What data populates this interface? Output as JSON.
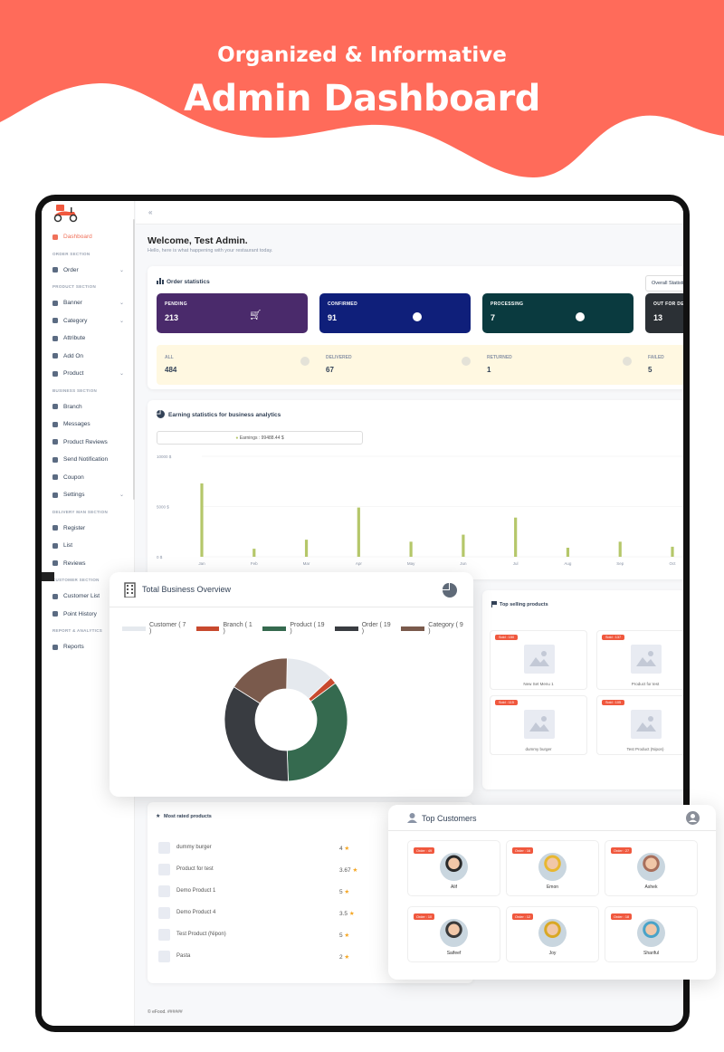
{
  "hero": {
    "subtitle": "Organized & Informative",
    "title": "Admin Dashboard",
    "color": "#ff6b5a"
  },
  "sidebar": {
    "items": [
      {
        "type": "item",
        "label": "Dashboard",
        "icon": "home-icon",
        "active": true
      },
      {
        "type": "head",
        "label": "ORDER SECTION"
      },
      {
        "type": "item",
        "label": "Order",
        "icon": "cart-icon",
        "chevron": true
      },
      {
        "type": "head",
        "label": "PRODUCT SECTION"
      },
      {
        "type": "item",
        "label": "Banner",
        "icon": "image-icon",
        "chevron": true
      },
      {
        "type": "item",
        "label": "Category",
        "icon": "category-icon",
        "chevron": true
      },
      {
        "type": "item",
        "label": "Attribute",
        "icon": "attribute-icon"
      },
      {
        "type": "item",
        "label": "Add On",
        "icon": "plus-circle-icon"
      },
      {
        "type": "item",
        "label": "Product",
        "icon": "heart-icon",
        "chevron": true
      },
      {
        "type": "head",
        "label": "BUSINESS SECTION"
      },
      {
        "type": "item",
        "label": "Branch",
        "icon": "store-icon"
      },
      {
        "type": "item",
        "label": "Messages",
        "icon": "message-icon"
      },
      {
        "type": "item",
        "label": "Product Reviews",
        "icon": "star-icon"
      },
      {
        "type": "item",
        "label": "Send Notification",
        "icon": "bell-icon"
      },
      {
        "type": "item",
        "label": "Coupon",
        "icon": "coupon-icon"
      },
      {
        "type": "item",
        "label": "Settings",
        "icon": "gear-icon",
        "chevron": true
      },
      {
        "type": "head",
        "label": "DELIVERY MAN SECTION"
      },
      {
        "type": "item",
        "label": "Register",
        "icon": "user-plus-icon"
      },
      {
        "type": "item",
        "label": "List",
        "icon": "filter-icon"
      },
      {
        "type": "item",
        "label": "Reviews",
        "icon": "star-outline-icon"
      },
      {
        "type": "head",
        "label": "CUSTOMER SECTION"
      },
      {
        "type": "item",
        "label": "Customer List",
        "icon": "pin-icon"
      },
      {
        "type": "item",
        "label": "Point History",
        "icon": "history-icon"
      },
      {
        "type": "head",
        "label": "REPORT & ANALYTICS"
      },
      {
        "type": "item",
        "label": "Reports",
        "icon": "report-icon"
      }
    ]
  },
  "topbar": {
    "collapse_icon": "collapse-icon"
  },
  "welcome": {
    "title": "Welcome, Test Admin.",
    "subtitle": "Hello, here is what happening with your restaurant today."
  },
  "order_stats": {
    "title": "Order statistics",
    "filter": "Overall Statistics",
    "cards": [
      {
        "label": "PENDING",
        "value": "213",
        "color": "#4a2a6b"
      },
      {
        "label": "CONFIRMED",
        "value": "91",
        "color": "#0f1f7a"
      },
      {
        "label": "PROCESSING",
        "value": "7",
        "color": "#0a3a3f"
      },
      {
        "label": "OUT FOR DELIVERY",
        "value": "13",
        "color": "#2b3035"
      }
    ],
    "mini": [
      {
        "label": "ALL",
        "value": "484"
      },
      {
        "label": "DELIVERED",
        "value": "67"
      },
      {
        "label": "RETURNED",
        "value": "1"
      },
      {
        "label": "FAILED",
        "value": "5"
      }
    ]
  },
  "earning": {
    "title": "Earning statistics for business analytics",
    "legend": "Earnings : 99488.44 $"
  },
  "chart_data": {
    "type": "bar",
    "categories": [
      "Jan",
      "Feb",
      "Mar",
      "Apr",
      "May",
      "Jun",
      "Jul",
      "Aug",
      "Sep",
      "Oct"
    ],
    "values": [
      73000,
      8000,
      17000,
      49000,
      15000,
      22000,
      39000,
      9000,
      15000,
      10000
    ],
    "yticks": [
      "10000 $",
      "5000 $",
      "0 $"
    ],
    "ylim": [
      0,
      100000
    ],
    "color": "#b5c76a"
  },
  "business_overview": {
    "title": "Total Business Overview",
    "legend": [
      {
        "label": "Customer ( 7 )",
        "value": 7,
        "color": "#e5e9ee"
      },
      {
        "label": "Branch ( 1 )",
        "value": 1,
        "color": "#c8492e"
      },
      {
        "label": "Product ( 19 )",
        "value": 19,
        "color": "#356a4f"
      },
      {
        "label": "Order ( 19 )",
        "value": 19,
        "color": "#393c41"
      },
      {
        "label": "Category ( 9 )",
        "value": 9,
        "color": "#7a5a4c"
      }
    ]
  },
  "top_selling": {
    "title": "Top selling products",
    "items": [
      {
        "badge": "Sold : 150",
        "name": "New Set Menu 1"
      },
      {
        "badge": "Sold : 137",
        "name": "Product for test"
      },
      {
        "badge": "Sold : 115",
        "name": "dummy burger"
      },
      {
        "badge": "Sold : 105",
        "name": "Test Product (Nipon)"
      }
    ]
  },
  "most_rated": {
    "title": "Most rated products",
    "items": [
      {
        "name": "dummy burger",
        "rating": "4"
      },
      {
        "name": "Product for test",
        "rating": "3.67"
      },
      {
        "name": "Demo Product 1",
        "rating": "5"
      },
      {
        "name": "Demo Product 4",
        "rating": "3.5"
      },
      {
        "name": "Test Product (Nipon)",
        "rating": "5"
      },
      {
        "name": "Pasta",
        "rating": "2"
      }
    ]
  },
  "top_customers": {
    "title": "Top Customers",
    "items": [
      {
        "badge": "Order : 49",
        "name": "Alif",
        "color": "#2a2a2a"
      },
      {
        "badge": "Order : 16",
        "name": "Emon",
        "color": "#e8b730"
      },
      {
        "badge": "Order : 27",
        "name": "Ashek",
        "color": "#a86f5c"
      },
      {
        "badge": "Order : 10",
        "name": "Saifeef",
        "color": "#3a3a3a"
      },
      {
        "badge": "Order : 12",
        "name": "Joy",
        "color": "#d9a825"
      },
      {
        "badge": "Order : 18",
        "name": "Shariful",
        "color": "#4aa3c8"
      }
    ]
  },
  "footer": {
    "copyright": "© eFood. ######"
  }
}
